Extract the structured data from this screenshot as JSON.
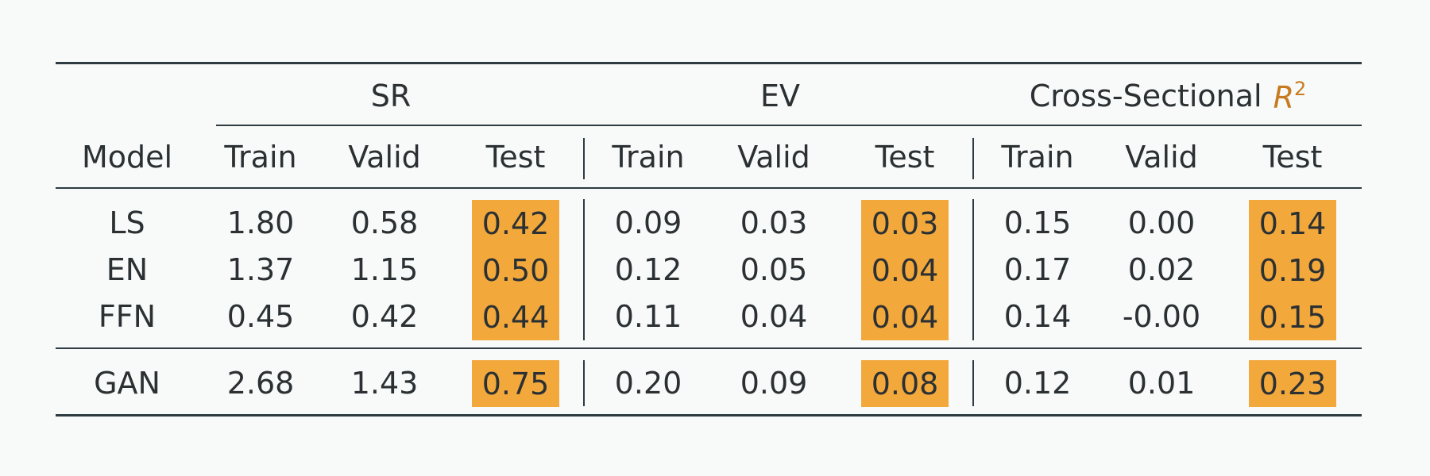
{
  "table": {
    "groups": [
      {
        "label": "SR"
      },
      {
        "label": "EV"
      },
      {
        "label": "Cross-Sectional",
        "symbol": "R",
        "superscript": "2"
      }
    ],
    "model_header": "Model",
    "sub_headers": [
      "Train",
      "Valid",
      "Test",
      "Train",
      "Valid",
      "Test",
      "Train",
      "Valid",
      "Test"
    ],
    "rows": [
      {
        "model": "LS",
        "values": [
          "1.80",
          "0.58",
          "0.42",
          "0.09",
          "0.03",
          "0.03",
          "0.15",
          "0.00",
          "0.14"
        ]
      },
      {
        "model": "EN",
        "values": [
          "1.37",
          "1.15",
          "0.50",
          "0.12",
          "0.05",
          "0.04",
          "0.17",
          "0.02",
          "0.19"
        ]
      },
      {
        "model": "FFN",
        "values": [
          "0.45",
          "0.42",
          "0.44",
          "0.11",
          "0.04",
          "0.04",
          "0.14",
          "-0.00",
          "0.15"
        ]
      },
      {
        "model": "GAN",
        "values": [
          "2.68",
          "1.43",
          "0.75",
          "0.20",
          "0.09",
          "0.08",
          "0.12",
          "0.01",
          "0.23"
        ]
      }
    ],
    "highlight_color": "#f3a83c",
    "highlighted_columns": [
      "Test"
    ]
  }
}
